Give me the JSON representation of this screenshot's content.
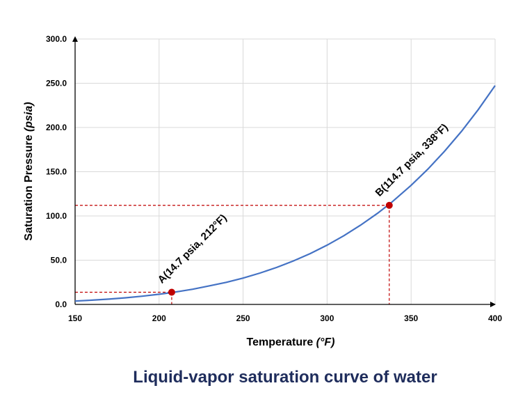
{
  "chart_data": {
    "type": "line",
    "title": "",
    "xlabel": "Temperature",
    "xlabel_unit": "(°F)",
    "ylabel": "Saturation Pressure",
    "ylabel_unit": "(psia)",
    "xlim": [
      150,
      400
    ],
    "ylim": [
      0,
      300
    ],
    "x_ticks": [
      "150",
      "200",
      "250",
      "300",
      "350",
      "400"
    ],
    "y_ticks": [
      "0.0",
      "50.0",
      "100.0",
      "150.0",
      "200.0",
      "250.0",
      "300.0"
    ],
    "grid": true,
    "series": [
      {
        "color": "#4472c4",
        "x": [
          150,
          160,
          170,
          180,
          190,
          200,
          208,
          212,
          220,
          230,
          240,
          250,
          260,
          270,
          280,
          290,
          300,
          310,
          320,
          330,
          338,
          350,
          360,
          370,
          380,
          390,
          400
        ],
        "y": [
          3.8,
          4.8,
          6.0,
          7.5,
          9.3,
          11.5,
          13.5,
          14.7,
          17.2,
          21.0,
          25.0,
          29.8,
          35.4,
          41.8,
          49.2,
          57.5,
          67.0,
          77.7,
          89.7,
          103.0,
          114.7,
          134.6,
          153.0,
          173.3,
          195.7,
          220.2,
          247.3
        ]
      }
    ],
    "points": [
      {
        "label": "A(14.7 psia, 212°F)",
        "x": 207.5,
        "y": 13.8,
        "color": "#c00000"
      },
      {
        "label": "B(114.7 psia, 338°F)",
        "x": 337,
        "y": 112,
        "color": "#c00000"
      }
    ],
    "reference_line_color": "#c00000"
  },
  "caption": "Liquid-vapor saturation curve of water"
}
